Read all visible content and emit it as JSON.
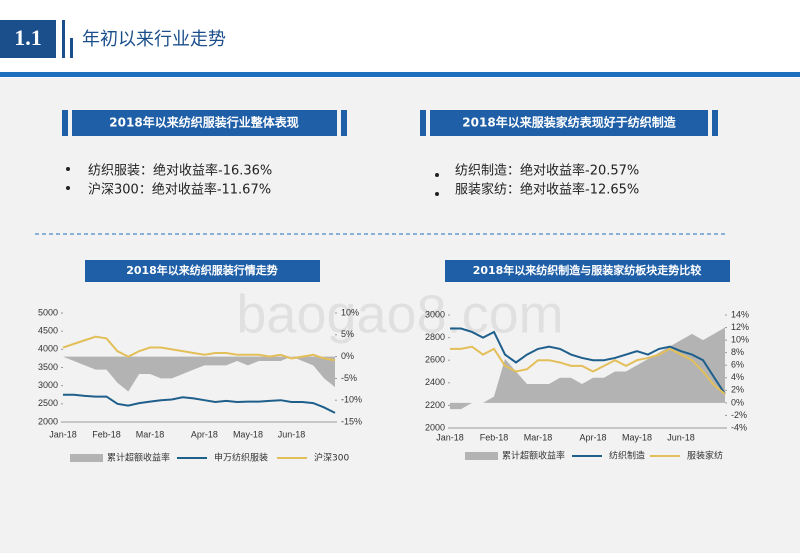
{
  "header": {
    "number": "1.1",
    "title": "年初以来行业走势"
  },
  "watermark": "baogao8.com",
  "panels": [
    {
      "title": "2018年以来纺织服装行业整体表现",
      "bullets": [
        "纺织服装：绝对收益率-16.36%",
        "沪深300：绝对收益率-11.67%"
      ]
    },
    {
      "title": "2018年以来服装家纺表现好于纺织制造",
      "bullets": [
        "纺织制造：绝对收益率-20.57%",
        "服装家纺：绝对收益率-12.65%"
      ]
    }
  ],
  "chart_data": [
    {
      "type": "combo",
      "title": "2018年以来纺织服装行情走势",
      "categories": [
        "Jan-18",
        null,
        null,
        null,
        "Feb-18",
        null,
        null,
        null,
        "Mar-18",
        null,
        null,
        null,
        null,
        "Apr-18",
        null,
        null,
        null,
        "May-18",
        null,
        null,
        null,
        "Jun-18",
        null,
        null,
        null,
        null
      ],
      "series": [
        {
          "name": "累计超额收益率",
          "type": "area",
          "axis": "y2",
          "color": "#b3b3b3",
          "values": [
            0,
            -1,
            -2,
            -3,
            -3,
            -6,
            -8,
            -4,
            -4,
            -5,
            -5,
            -4,
            -3,
            -2,
            -2,
            -2,
            -1,
            -2,
            -1,
            -1,
            -1,
            0,
            -1,
            -2,
            -5,
            -7
          ]
        },
        {
          "name": "申万纺织服装",
          "type": "line",
          "color": "#1f5f8b",
          "values": [
            2750,
            2750,
            2720,
            2700,
            2700,
            2500,
            2450,
            2520,
            2560,
            2600,
            2620,
            2680,
            2650,
            2600,
            2550,
            2580,
            2550,
            2560,
            2560,
            2580,
            2600,
            2550,
            2550,
            2520,
            2400,
            2250
          ]
        },
        {
          "name": "沪深300",
          "type": "line",
          "color": "#e3bf5a",
          "values": [
            4050,
            4150,
            4250,
            4350,
            4300,
            3950,
            3800,
            3950,
            4050,
            4050,
            4000,
            3950,
            3900,
            3850,
            3900,
            3900,
            3850,
            3850,
            3850,
            3800,
            3850,
            3750,
            3800,
            3850,
            3750,
            3700
          ]
        }
      ],
      "ylim": [
        2000,
        5000
      ],
      "yticks": [
        2000,
        2500,
        3000,
        3500,
        4000,
        4500,
        5000
      ],
      "y2lim": [
        -15,
        10
      ],
      "y2ticks": [
        {
          "value": -15,
          "label": "-15%"
        },
        {
          "value": -10,
          "label": "-10%"
        },
        {
          "value": -5,
          "label": "-5%"
        },
        {
          "value": 0,
          "label": "0%"
        },
        {
          "value": 5,
          "label": "5%"
        },
        {
          "value": 10,
          "label": "10%"
        }
      ]
    },
    {
      "type": "combo",
      "title": "2018年以来纺织制造与服装家纺板块走势比较",
      "categories": [
        "Jan-18",
        null,
        null,
        null,
        "Feb-18",
        null,
        null,
        null,
        "Mar-18",
        null,
        null,
        null,
        null,
        "Apr-18",
        null,
        null,
        null,
        "May-18",
        null,
        null,
        null,
        "Jun-18",
        null,
        null,
        null,
        null
      ],
      "series": [
        {
          "name": "累计超额收益率",
          "type": "area",
          "axis": "y2",
          "color": "#b3b3b3",
          "values": [
            -1,
            -1,
            0,
            0,
            1,
            7,
            5,
            3,
            3,
            3,
            4,
            4,
            3,
            4,
            4,
            5,
            5,
            6,
            7,
            8,
            9,
            10,
            11,
            10,
            11,
            12
          ]
        },
        {
          "name": "纺织制造",
          "type": "line",
          "color": "#1f5f8b",
          "values": [
            2880,
            2880,
            2850,
            2800,
            2850,
            2650,
            2580,
            2650,
            2700,
            2720,
            2700,
            2650,
            2620,
            2600,
            2600,
            2620,
            2650,
            2680,
            2650,
            2700,
            2720,
            2680,
            2650,
            2600,
            2450,
            2300
          ]
        },
        {
          "name": "服装家纺",
          "type": "line",
          "color": "#e3bf5a",
          "values": [
            2700,
            2700,
            2720,
            2650,
            2700,
            2550,
            2500,
            2520,
            2600,
            2600,
            2580,
            2550,
            2550,
            2500,
            2550,
            2600,
            2550,
            2600,
            2620,
            2650,
            2700,
            2650,
            2600,
            2500,
            2380,
            2300
          ]
        }
      ],
      "ylim": [
        2000,
        3000
      ],
      "yticks": [
        2000,
        2200,
        2400,
        2600,
        2800,
        3000
      ],
      "y2lim": [
        -4,
        14
      ],
      "y2ticks": [
        {
          "value": -4,
          "label": "-4%"
        },
        {
          "value": -2,
          "label": "-2%"
        },
        {
          "value": 0,
          "label": "0%"
        },
        {
          "value": 2,
          "label": "2%"
        },
        {
          "value": 4,
          "label": "4%"
        },
        {
          "value": 6,
          "label": "6%"
        },
        {
          "value": 8,
          "label": "8%"
        },
        {
          "value": 10,
          "label": "10%"
        },
        {
          "value": 12,
          "label": "12%"
        },
        {
          "value": 14,
          "label": "14%"
        }
      ]
    }
  ]
}
